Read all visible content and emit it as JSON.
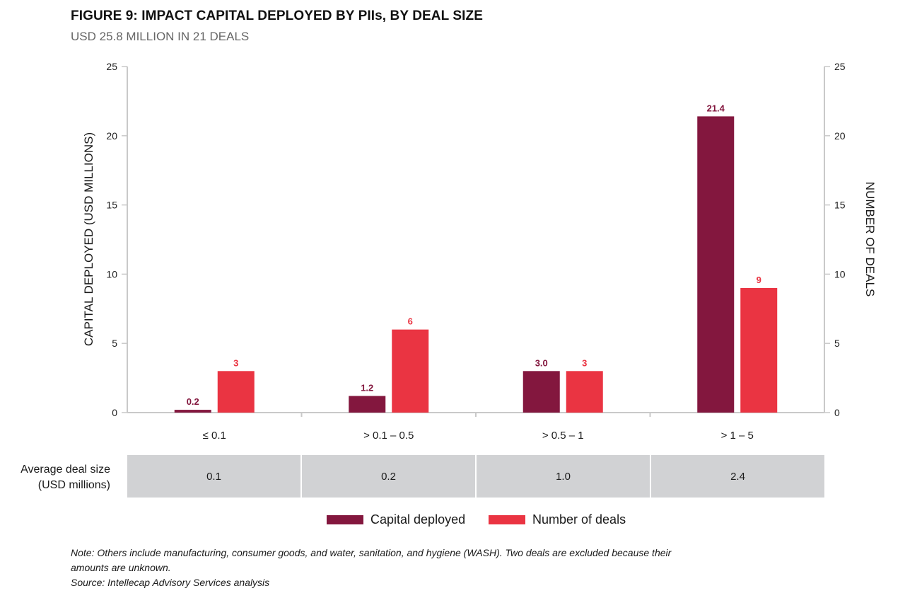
{
  "title": "FIGURE 9: IMPACT CAPITAL DEPLOYED BY PIIs, BY DEAL SIZE",
  "subtitle": "USD 25.8 MILLION IN 21 DEALS",
  "chart_data": {
    "type": "bar",
    "title": "FIGURE 9: IMPACT CAPITAL DEPLOYED BY PIIs, BY DEAL SIZE",
    "subtitle": "USD 25.8 MILLION IN 21 DEALS",
    "categories": [
      "≤ 0.1",
      "> 0.1 – 0.5",
      "> 0.5 – 1",
      "> 1 – 5"
    ],
    "series": [
      {
        "name": "Capital deployed",
        "axis": "left",
        "color": "#83173e",
        "values": [
          0.2,
          1.2,
          3.0,
          21.4
        ],
        "labels": [
          "0.2",
          "1.2",
          "3.0",
          "21.4"
        ]
      },
      {
        "name": "Number of deals",
        "axis": "right",
        "color": "#ea3442",
        "values": [
          3,
          6,
          3,
          9
        ],
        "labels": [
          "3",
          "6",
          "3",
          "9"
        ]
      }
    ],
    "ylabel": "CAPITAL DEPLOYED (USD MILLIONS)",
    "y2label": "NUMBER OF DEALS",
    "ylim": [
      0,
      25
    ],
    "y2lim": [
      0,
      25
    ],
    "yticks": [
      "0",
      "5",
      "10",
      "15",
      "20",
      "25"
    ],
    "y2ticks": [
      "0",
      "5",
      "10",
      "15",
      "20",
      "25"
    ],
    "grid": false,
    "legend_position": "bottom"
  },
  "table": {
    "label_line1": "Average deal size",
    "label_line2": "(USD millions)",
    "values": [
      "0.1",
      "0.2",
      "1.0",
      "2.4"
    ]
  },
  "legend": {
    "items": [
      {
        "label": "Capital deployed",
        "color": "#83173e"
      },
      {
        "label": "Number of deals",
        "color": "#ea3442"
      }
    ]
  },
  "notes": {
    "line1": "Note: Others include manufacturing, consumer goods, and water, sanitation, and hygiene (WASH). Two deals are excluded because their",
    "line2": "amounts are unknown.",
    "line3": "Source: Intellecap Advisory Services analysis"
  }
}
